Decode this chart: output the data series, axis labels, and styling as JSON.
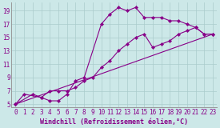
{
  "background_color": "#cce8e8",
  "line_color": "#880088",
  "grid_color": "#aacccc",
  "xlabel": "Windchill (Refroidissement éolien,°C)",
  "xlim": [
    -0.5,
    23.5
  ],
  "ylim": [
    4.5,
    20.2
  ],
  "xticks": [
    0,
    1,
    2,
    3,
    4,
    5,
    6,
    7,
    8,
    9,
    10,
    11,
    12,
    13,
    14,
    15,
    16,
    17,
    18,
    19,
    20,
    21,
    22,
    23
  ],
  "yticks": [
    5,
    7,
    9,
    11,
    13,
    15,
    17,
    19
  ],
  "line1_x": [
    0,
    1,
    3,
    4,
    5,
    6,
    7,
    8,
    10,
    11,
    12,
    13,
    14,
    15,
    16,
    17,
    18,
    19,
    20,
    21,
    22,
    23
  ],
  "line1_y": [
    5.0,
    6.5,
    6.0,
    5.5,
    5.5,
    6.5,
    8.5,
    9.0,
    17.0,
    18.5,
    19.5,
    19.0,
    19.5,
    18.0,
    18.0,
    18.0,
    17.5,
    17.5,
    17.0,
    16.5,
    15.5,
    15.5
  ],
  "line2_x": [
    0,
    2,
    3,
    4,
    5,
    6,
    7,
    8,
    9,
    10,
    11,
    12,
    13,
    14,
    15,
    16,
    17,
    18,
    19,
    20,
    21,
    22,
    23
  ],
  "line2_y": [
    5.0,
    6.5,
    6.0,
    7.0,
    7.0,
    7.0,
    7.5,
    8.5,
    9.0,
    10.5,
    11.5,
    13.0,
    14.0,
    15.0,
    15.5,
    13.5,
    14.0,
    14.5,
    15.5,
    16.0,
    16.5,
    15.5,
    15.5
  ],
  "line3_x": [
    0,
    23
  ],
  "line3_y": [
    5.0,
    15.5
  ],
  "font_family": "monospace",
  "tick_fontsize": 5.5,
  "label_fontsize": 6.0
}
